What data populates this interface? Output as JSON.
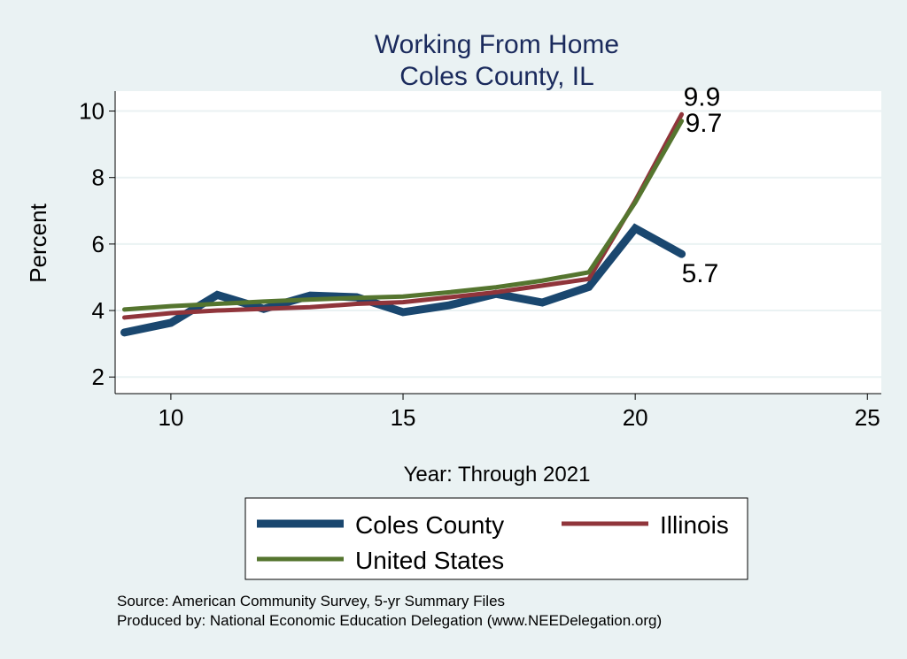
{
  "chart_data": {
    "type": "line",
    "title": "Working From Home",
    "subtitle": "Coles County, IL",
    "xlabel": "Year: Through 2021",
    "ylabel": "Percent",
    "xlim": [
      8.8,
      25.3
    ],
    "ylim": [
      1.5,
      10.6
    ],
    "xticks": [
      10,
      15,
      20,
      25
    ],
    "yticks": [
      2,
      4,
      6,
      8,
      10
    ],
    "grid": true,
    "x": [
      9,
      10,
      11,
      12,
      13,
      14,
      15,
      16,
      17,
      18,
      19,
      20,
      21
    ],
    "series": [
      {
        "name": "Coles County",
        "color": "#1a476f",
        "values": [
          3.34,
          3.63,
          4.47,
          4.05,
          4.45,
          4.4,
          3.95,
          4.16,
          4.5,
          4.24,
          4.71,
          6.47,
          5.7
        ],
        "end_label": "5.7"
      },
      {
        "name": "Illinois",
        "color": "#90353b",
        "values": [
          3.79,
          3.92,
          4.0,
          4.05,
          4.1,
          4.2,
          4.25,
          4.4,
          4.55,
          4.75,
          4.95,
          7.3,
          9.9
        ],
        "end_label": "9.9"
      },
      {
        "name": "United States",
        "color": "#55752f",
        "values": [
          4.03,
          4.13,
          4.2,
          4.27,
          4.33,
          4.38,
          4.42,
          4.55,
          4.7,
          4.9,
          5.15,
          7.25,
          9.7
        ],
        "end_label": "9.7"
      }
    ],
    "legend_position": "bottom",
    "notes": [
      "Source: American Community Survey, 5-yr Summary Files",
      "Produced by: National Economic Education Delegation (www.NEEDelegation.org)"
    ]
  }
}
